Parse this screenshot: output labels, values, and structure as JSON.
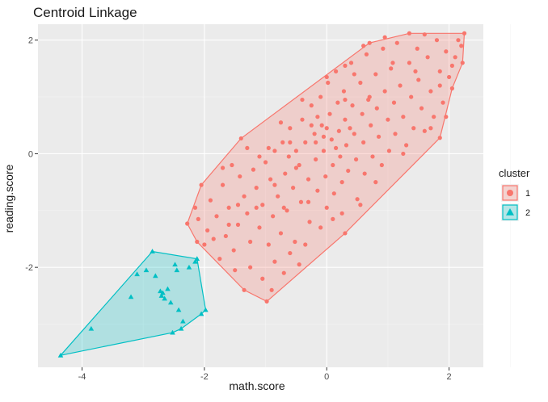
{
  "chart_data": {
    "type": "scatter",
    "title": "Centroid Linkage",
    "xlabel": "math.score",
    "ylabel": "reading.score",
    "xlim": [
      -4.72,
      2.56
    ],
    "ylim": [
      -3.76,
      2.28
    ],
    "x_ticks": [
      -4,
      -2,
      0,
      2
    ],
    "y_ticks": [
      -2,
      0,
      2
    ],
    "x_tick_labels": [
      "-4",
      "-2",
      "0",
      "2"
    ],
    "y_tick_labels": [
      "-2",
      "0",
      "2"
    ],
    "grid": true,
    "legend": {
      "title": "cluster",
      "position": "right"
    },
    "series": [
      {
        "name": "1",
        "marker": "circle",
        "color": "#F8766D",
        "hull": [
          [
            -2.28,
            -1.23
          ],
          [
            -2.05,
            -0.55
          ],
          [
            -1.4,
            0.27
          ],
          [
            0.7,
            1.95
          ],
          [
            1.35,
            2.12
          ],
          [
            2.25,
            2.12
          ],
          [
            2.22,
            1.6
          ],
          [
            2.05,
            1.15
          ],
          [
            1.85,
            0.28
          ],
          [
            0.3,
            -1.4
          ],
          [
            -0.98,
            -2.6
          ],
          [
            -1.35,
            -2.4
          ],
          [
            -2.12,
            -1.55
          ]
        ],
        "points": [
          [
            -2.28,
            -1.23
          ],
          [
            -2.05,
            -0.55
          ],
          [
            -1.4,
            0.27
          ],
          [
            0.7,
            1.95
          ],
          [
            1.35,
            2.12
          ],
          [
            2.25,
            2.12
          ],
          [
            2.22,
            1.6
          ],
          [
            2.05,
            1.15
          ],
          [
            1.85,
            0.28
          ],
          [
            0.3,
            -1.4
          ],
          [
            -0.98,
            -2.6
          ],
          [
            -1.35,
            -2.4
          ],
          [
            -2.12,
            -1.55
          ],
          [
            -2.15,
            -0.95
          ],
          [
            -1.9,
            -0.82
          ],
          [
            -1.95,
            -1.35
          ],
          [
            -1.8,
            -1.1
          ],
          [
            -1.7,
            -0.55
          ],
          [
            -1.65,
            -1.45
          ],
          [
            -1.6,
            -0.95
          ],
          [
            -1.55,
            -0.2
          ],
          [
            -1.52,
            -1.7
          ],
          [
            -1.45,
            -1.25
          ],
          [
            -1.42,
            -0.4
          ],
          [
            -1.35,
            -0.75
          ],
          [
            -1.3,
            -1.05
          ],
          [
            -1.25,
            -1.55
          ],
          [
            -1.2,
            -0.28
          ],
          [
            -1.15,
            -0.6
          ],
          [
            -1.1,
            -1.3
          ],
          [
            -1.05,
            -0.9
          ],
          [
            -1.0,
            -0.15
          ],
          [
            -0.95,
            -1.6
          ],
          [
            -0.92,
            -0.45
          ],
          [
            -0.88,
            -1.1
          ],
          [
            -0.85,
            0.05
          ],
          [
            -0.8,
            -0.75
          ],
          [
            -0.75,
            -1.4
          ],
          [
            -0.72,
            0.2
          ],
          [
            -0.68,
            -0.35
          ],
          [
            -0.65,
            -1.0
          ],
          [
            -0.6,
            0.45
          ],
          [
            -0.55,
            -0.6
          ],
          [
            -0.52,
            -1.55
          ],
          [
            -0.5,
            0.05
          ],
          [
            -0.45,
            -0.2
          ],
          [
            -0.42,
            -0.85
          ],
          [
            -0.4,
            0.6
          ],
          [
            -0.35,
            0.2
          ],
          [
            -0.3,
            -0.45
          ],
          [
            -0.28,
            -1.2
          ],
          [
            -0.25,
            0.85
          ],
          [
            -0.2,
            0.35
          ],
          [
            -0.18,
            -0.1
          ],
          [
            -0.15,
            -0.65
          ],
          [
            -0.1,
            1.0
          ],
          [
            -0.08,
            0.5
          ],
          [
            -0.05,
            0.05
          ],
          [
            -0.02,
            -0.4
          ],
          [
            0.0,
            -0.95
          ],
          [
            0.02,
            1.25
          ],
          [
            0.05,
            0.7
          ],
          [
            0.08,
            0.25
          ],
          [
            0.1,
            -0.2
          ],
          [
            0.12,
            -0.7
          ],
          [
            0.15,
            1.45
          ],
          [
            0.18,
            0.9
          ],
          [
            0.2,
            0.4
          ],
          [
            0.22,
            -0.05
          ],
          [
            0.25,
            -0.5
          ],
          [
            0.28,
            1.1
          ],
          [
            0.3,
            0.6
          ],
          [
            0.32,
            0.15
          ],
          [
            0.35,
            -0.3
          ],
          [
            0.4,
            1.6
          ],
          [
            0.42,
            0.85
          ],
          [
            0.45,
            0.35
          ],
          [
            0.48,
            -0.1
          ],
          [
            0.5,
            -0.8
          ],
          [
            0.55,
            1.25
          ],
          [
            0.58,
            0.7
          ],
          [
            0.6,
            0.2
          ],
          [
            0.62,
            -0.35
          ],
          [
            0.65,
            1.75
          ],
          [
            0.7,
            1.0
          ],
          [
            0.72,
            0.5
          ],
          [
            0.75,
            -0.05
          ],
          [
            0.8,
            1.4
          ],
          [
            0.82,
            0.8
          ],
          [
            0.85,
            0.3
          ],
          [
            0.9,
            -0.2
          ],
          [
            0.92,
            1.85
          ],
          [
            0.95,
            1.1
          ],
          [
            1.0,
            0.6
          ],
          [
            1.02,
            0.05
          ],
          [
            1.05,
            1.5
          ],
          [
            1.1,
            0.9
          ],
          [
            1.12,
            0.35
          ],
          [
            1.15,
            1.95
          ],
          [
            1.2,
            1.2
          ],
          [
            1.25,
            0.65
          ],
          [
            1.3,
            0.15
          ],
          [
            1.35,
            1.6
          ],
          [
            1.38,
            1.0
          ],
          [
            1.42,
            0.45
          ],
          [
            1.48,
            1.85
          ],
          [
            1.5,
            1.3
          ],
          [
            1.55,
            0.8
          ],
          [
            1.6,
            0.4
          ],
          [
            1.65,
            1.7
          ],
          [
            1.7,
            1.1
          ],
          [
            1.75,
            0.65
          ],
          [
            1.8,
            2.0
          ],
          [
            1.85,
            1.45
          ],
          [
            1.9,
            0.9
          ],
          [
            1.95,
            1.8
          ],
          [
            2.0,
            1.35
          ],
          [
            2.1,
            1.7
          ],
          [
            2.15,
            2.0
          ],
          [
            -0.7,
            -0.95
          ],
          [
            -0.3,
            -0.85
          ],
          [
            0.0,
            0.45
          ],
          [
            0.15,
            0.1
          ],
          [
            0.3,
            0.95
          ],
          [
            -0.5,
            -0.25
          ],
          [
            -0.15,
            0.65
          ],
          [
            0.45,
            1.4
          ],
          [
            -0.85,
            -0.55
          ],
          [
            -1.1,
            -0.05
          ],
          [
            -1.6,
            -1.25
          ],
          [
            -1.25,
            -2.0
          ],
          [
            -1.05,
            -2.2
          ],
          [
            -0.85,
            -1.9
          ],
          [
            -0.6,
            -1.75
          ],
          [
            -0.35,
            -1.6
          ],
          [
            -0.1,
            -1.3
          ],
          [
            0.1,
            -1.15
          ],
          [
            -0.9,
            -2.4
          ],
          [
            -0.7,
            -2.1
          ],
          [
            -0.45,
            -1.95
          ],
          [
            -1.5,
            -2.05
          ],
          [
            -1.75,
            -1.85
          ],
          [
            -2.0,
            -1.6
          ],
          [
            -1.85,
            -1.5
          ],
          [
            -2.1,
            -1.15
          ],
          [
            -1.7,
            -0.25
          ],
          [
            -1.3,
            0.1
          ],
          [
            -0.75,
            0.55
          ],
          [
            -0.4,
            0.95
          ],
          [
            0.0,
            1.35
          ],
          [
            0.3,
            1.55
          ],
          [
            0.6,
            1.9
          ],
          [
            0.95,
            2.05
          ],
          [
            1.6,
            2.1
          ],
          [
            2.2,
            1.9
          ],
          [
            2.05,
            1.55
          ],
          [
            1.95,
            0.65
          ],
          [
            1.7,
            0.45
          ],
          [
            1.25,
            0.0
          ],
          [
            0.8,
            -0.5
          ],
          [
            0.55,
            -0.9
          ],
          [
            0.25,
            -1.05
          ],
          [
            -0.05,
            0.3
          ],
          [
            -0.25,
            0.5
          ],
          [
            -0.6,
            0.2
          ],
          [
            -0.95,
            0.1
          ],
          [
            -1.45,
            -0.9
          ],
          [
            -1.15,
            -0.95
          ],
          [
            -0.62,
            -0.05
          ],
          [
            -0.18,
            0.2
          ],
          [
            0.38,
            0.45
          ],
          [
            0.68,
            0.95
          ],
          [
            1.08,
            1.6
          ],
          [
            1.45,
            1.45
          ],
          [
            1.85,
            1.2
          ]
        ]
      },
      {
        "name": "2",
        "marker": "triangle",
        "color": "#00BFC4",
        "hull": [
          [
            -4.35,
            -3.55
          ],
          [
            -2.85,
            -1.72
          ],
          [
            -2.12,
            -1.85
          ],
          [
            -1.98,
            -2.75
          ],
          [
            -2.05,
            -2.82
          ],
          [
            -2.38,
            -3.08
          ],
          [
            -2.52,
            -3.15
          ]
        ],
        "points": [
          [
            -4.35,
            -3.55
          ],
          [
            -3.85,
            -3.08
          ],
          [
            -3.2,
            -2.52
          ],
          [
            -3.1,
            -2.12
          ],
          [
            -2.95,
            -2.05
          ],
          [
            -2.85,
            -1.72
          ],
          [
            -2.8,
            -2.15
          ],
          [
            -2.72,
            -2.42
          ],
          [
            -2.7,
            -2.5
          ],
          [
            -2.68,
            -2.45
          ],
          [
            -2.65,
            -2.55
          ],
          [
            -2.6,
            -2.38
          ],
          [
            -2.55,
            -2.62
          ],
          [
            -2.52,
            -3.15
          ],
          [
            -2.48,
            -1.95
          ],
          [
            -2.45,
            -2.05
          ],
          [
            -2.42,
            -2.75
          ],
          [
            -2.38,
            -3.08
          ],
          [
            -2.35,
            -2.95
          ],
          [
            -2.25,
            -2.0
          ],
          [
            -2.15,
            -1.9
          ],
          [
            -2.12,
            -1.85
          ],
          [
            -2.05,
            -2.82
          ],
          [
            -1.98,
            -2.75
          ]
        ]
      }
    ]
  }
}
